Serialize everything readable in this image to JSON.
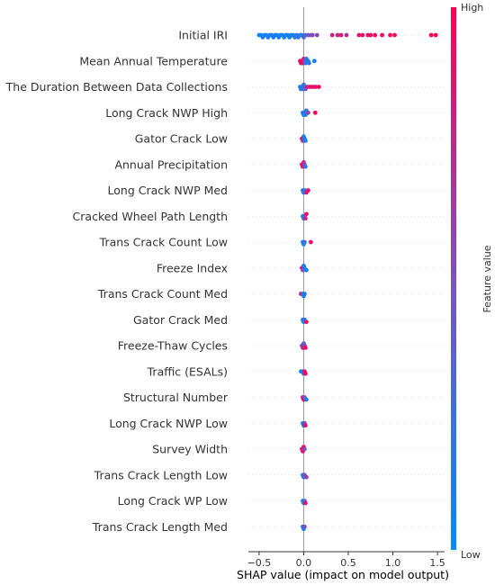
{
  "chart_data": {
    "type": "scatter",
    "subtype": "beeswarm",
    "title": "",
    "xlabel": "SHAP value (impact on model output)",
    "xlim": [
      -0.62,
      1.58
    ],
    "xticks": [
      -0.5,
      0.0,
      0.5,
      1.0,
      1.5
    ],
    "xtick_labels": [
      "−0.5",
      "0.0",
      "0.5",
      "1.0",
      "1.5"
    ],
    "zero_line": true,
    "colorbar": {
      "label": "Feature value",
      "high_label": "High",
      "low_label": "Low",
      "low_color": "#008afb",
      "mid_color": "#7c52c0",
      "high_color": "#ff0052"
    },
    "features": [
      {
        "name": "Initial IRI",
        "points": [
          [
            -0.5,
            0.05
          ],
          [
            -0.48,
            0.05
          ],
          [
            -0.46,
            0.1
          ],
          [
            -0.44,
            0.05
          ],
          [
            -0.42,
            0.1
          ],
          [
            -0.4,
            0.1
          ],
          [
            -0.38,
            0.12
          ],
          [
            -0.36,
            0.12
          ],
          [
            -0.34,
            0.1
          ],
          [
            -0.32,
            0.08
          ],
          [
            -0.3,
            0.1
          ],
          [
            -0.28,
            0.1
          ],
          [
            -0.26,
            0.08
          ],
          [
            -0.24,
            0.1
          ],
          [
            -0.22,
            0.08
          ],
          [
            -0.2,
            0.06
          ],
          [
            -0.18,
            0.1
          ],
          [
            -0.16,
            0.1
          ],
          [
            -0.14,
            0.08
          ],
          [
            -0.12,
            0.06
          ],
          [
            -0.1,
            0.12
          ],
          [
            -0.08,
            0.2
          ],
          [
            -0.06,
            0.2
          ],
          [
            -0.04,
            0.15
          ],
          [
            -0.02,
            0.1
          ],
          [
            0.0,
            0.3
          ],
          [
            0.02,
            0.35
          ],
          [
            0.05,
            0.45
          ],
          [
            0.08,
            0.5
          ],
          [
            0.1,
            0.5
          ],
          [
            0.15,
            0.55
          ],
          [
            0.32,
            0.8
          ],
          [
            0.38,
            0.8
          ],
          [
            0.42,
            0.85
          ],
          [
            0.48,
            0.7
          ],
          [
            0.62,
            0.85
          ],
          [
            0.66,
            0.9
          ],
          [
            0.72,
            0.9
          ],
          [
            0.75,
            0.95
          ],
          [
            0.8,
            0.95
          ],
          [
            0.88,
            0.95
          ],
          [
            0.97,
            0.95
          ],
          [
            1.02,
            0.95
          ],
          [
            1.43,
            1.0
          ],
          [
            1.48,
            1.0
          ]
        ]
      },
      {
        "name": "Mean Annual Temperature",
        "points": [
          [
            -0.04,
            0.95
          ],
          [
            -0.03,
            0.9
          ],
          [
            -0.02,
            0.95
          ],
          [
            -0.01,
            0.9
          ],
          [
            0.0,
            0.85
          ],
          [
            0.01,
            0.6
          ],
          [
            0.02,
            0.2
          ],
          [
            0.03,
            0.15
          ],
          [
            0.05,
            0.1
          ],
          [
            0.06,
            0.15
          ],
          [
            0.12,
            0.1
          ]
        ]
      },
      {
        "name": "The Duration Between Data Collections",
        "points": [
          [
            -0.04,
            0.1
          ],
          [
            -0.03,
            0.1
          ],
          [
            -0.02,
            0.1
          ],
          [
            -0.01,
            0.15
          ],
          [
            0.0,
            0.2
          ],
          [
            0.01,
            0.3
          ],
          [
            0.02,
            0.5
          ],
          [
            0.04,
            0.8
          ],
          [
            0.07,
            0.85
          ],
          [
            0.1,
            0.9
          ],
          [
            0.13,
            0.9
          ],
          [
            0.17,
            0.95
          ]
        ]
      },
      {
        "name": "Long Crack NWP High",
        "points": [
          [
            -0.01,
            0.1
          ],
          [
            0.0,
            0.1
          ],
          [
            0.01,
            0.15
          ],
          [
            0.02,
            0.1
          ],
          [
            0.03,
            0.2
          ],
          [
            0.05,
            0.6
          ],
          [
            0.13,
            0.95
          ]
        ]
      },
      {
        "name": "Gator Crack Low",
        "points": [
          [
            -0.02,
            0.9
          ],
          [
            -0.01,
            0.6
          ],
          [
            0.0,
            0.1
          ],
          [
            0.01,
            0.1
          ],
          [
            0.02,
            0.1
          ]
        ]
      },
      {
        "name": "Annual Precipitation",
        "points": [
          [
            -0.02,
            0.95
          ],
          [
            -0.01,
            0.9
          ],
          [
            0.0,
            0.8
          ],
          [
            0.01,
            0.5
          ],
          [
            0.02,
            0.2
          ]
        ]
      },
      {
        "name": "Long Crack NWP Med",
        "points": [
          [
            -0.01,
            0.1
          ],
          [
            0.0,
            0.1
          ],
          [
            0.01,
            0.2
          ],
          [
            0.03,
            0.85
          ],
          [
            0.05,
            0.9
          ]
        ]
      },
      {
        "name": "Cracked Wheel Path Length",
        "points": [
          [
            -0.01,
            0.1
          ],
          [
            0.0,
            0.15
          ],
          [
            0.01,
            0.3
          ],
          [
            0.02,
            0.8
          ],
          [
            0.03,
            0.9
          ]
        ]
      },
      {
        "name": "Trans Crack Count Low",
        "points": [
          [
            -0.01,
            0.1
          ],
          [
            0.0,
            0.1
          ],
          [
            0.01,
            0.2
          ],
          [
            0.08,
            0.95
          ]
        ]
      },
      {
        "name": "Freeze Index",
        "points": [
          [
            -0.02,
            0.9
          ],
          [
            -0.01,
            0.5
          ],
          [
            0.0,
            0.1
          ],
          [
            0.01,
            0.1
          ],
          [
            0.03,
            0.1
          ]
        ]
      },
      {
        "name": "Trans Crack Count Med",
        "points": [
          [
            -0.03,
            0.9
          ],
          [
            -0.01,
            0.2
          ],
          [
            0.0,
            0.1
          ],
          [
            0.01,
            0.1
          ]
        ]
      },
      {
        "name": "Gator Crack Med",
        "points": [
          [
            -0.01,
            0.1
          ],
          [
            0.0,
            0.1
          ],
          [
            0.01,
            0.2
          ],
          [
            0.03,
            0.9
          ]
        ]
      },
      {
        "name": "Freeze-Thaw Cycles",
        "points": [
          [
            -0.02,
            0.5
          ],
          [
            -0.01,
            0.8
          ],
          [
            0.0,
            0.3
          ],
          [
            0.01,
            0.6
          ],
          [
            0.02,
            0.9
          ]
        ]
      },
      {
        "name": "Traffic (ESALs)",
        "points": [
          [
            -0.03,
            0.1
          ],
          [
            -0.01,
            0.1
          ],
          [
            0.0,
            0.2
          ],
          [
            0.01,
            0.9
          ],
          [
            0.02,
            0.95
          ]
        ]
      },
      {
        "name": "Structural Number",
        "points": [
          [
            -0.01,
            0.9
          ],
          [
            0.0,
            0.9
          ],
          [
            0.01,
            0.5
          ],
          [
            0.03,
            0.1
          ]
        ]
      },
      {
        "name": "Long Crack NWP Low",
        "points": [
          [
            -0.01,
            0.1
          ],
          [
            0.0,
            0.1
          ],
          [
            0.01,
            0.5
          ],
          [
            0.02,
            0.9
          ]
        ]
      },
      {
        "name": "Survey Width",
        "points": [
          [
            -0.02,
            0.95
          ],
          [
            -0.01,
            0.9
          ],
          [
            0.0,
            0.9
          ],
          [
            0.01,
            0.5
          ]
        ]
      },
      {
        "name": "Trans Crack Length Low",
        "points": [
          [
            -0.01,
            0.1
          ],
          [
            0.0,
            0.1
          ],
          [
            0.01,
            0.5
          ],
          [
            0.03,
            0.6
          ]
        ]
      },
      {
        "name": "Long Crack WP Low",
        "points": [
          [
            -0.01,
            0.1
          ],
          [
            0.0,
            0.1
          ],
          [
            0.01,
            0.3
          ],
          [
            0.02,
            0.9
          ]
        ]
      },
      {
        "name": "Trans Crack Length Med",
        "points": [
          [
            -0.01,
            0.1
          ],
          [
            0.0,
            0.1
          ],
          [
            0.01,
            0.5
          ]
        ]
      }
    ]
  }
}
